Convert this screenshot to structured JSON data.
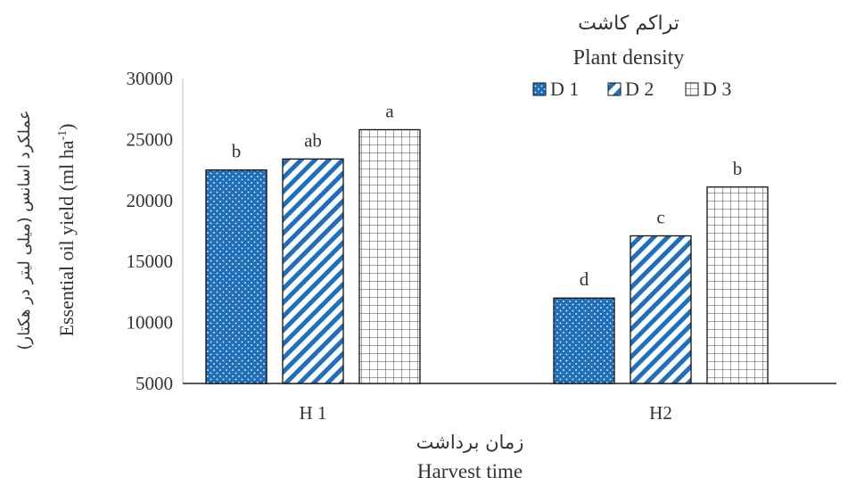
{
  "chart_data": {
    "type": "bar",
    "categories": [
      "H 1",
      "H2"
    ],
    "series": [
      {
        "name": "D 1",
        "values": [
          22500,
          12000
        ],
        "pattern": "dots",
        "color": "#1f6fba"
      },
      {
        "name": "D 2",
        "values": [
          23400,
          17100
        ],
        "pattern": "diagonal",
        "color": "#1f6fba"
      },
      {
        "name": "D 3",
        "values": [
          25800,
          21100
        ],
        "pattern": "grid",
        "color": "#555555"
      }
    ],
    "letters": [
      [
        "b",
        "d"
      ],
      [
        "ab",
        "c"
      ],
      [
        "a",
        "b"
      ]
    ],
    "legend": {
      "title_fa": "تراکم کاشت",
      "title_en": "Plant density",
      "placement": "top-right"
    },
    "xlabel_fa": "زمان برداشت",
    "xlabel_en": "Harvest time",
    "ylabel_fa": "عملکرد اسانس (میلی لیتر در هکتار)",
    "ylabel_en_prefix": "Essential oil yield (ml ha",
    "ylabel_en_sup": "-1",
    "ylabel_en_suffix": ")",
    "ylim": [
      5000,
      30000
    ],
    "yticks": [
      5000,
      10000,
      15000,
      20000,
      25000,
      30000
    ],
    "grid": false
  }
}
